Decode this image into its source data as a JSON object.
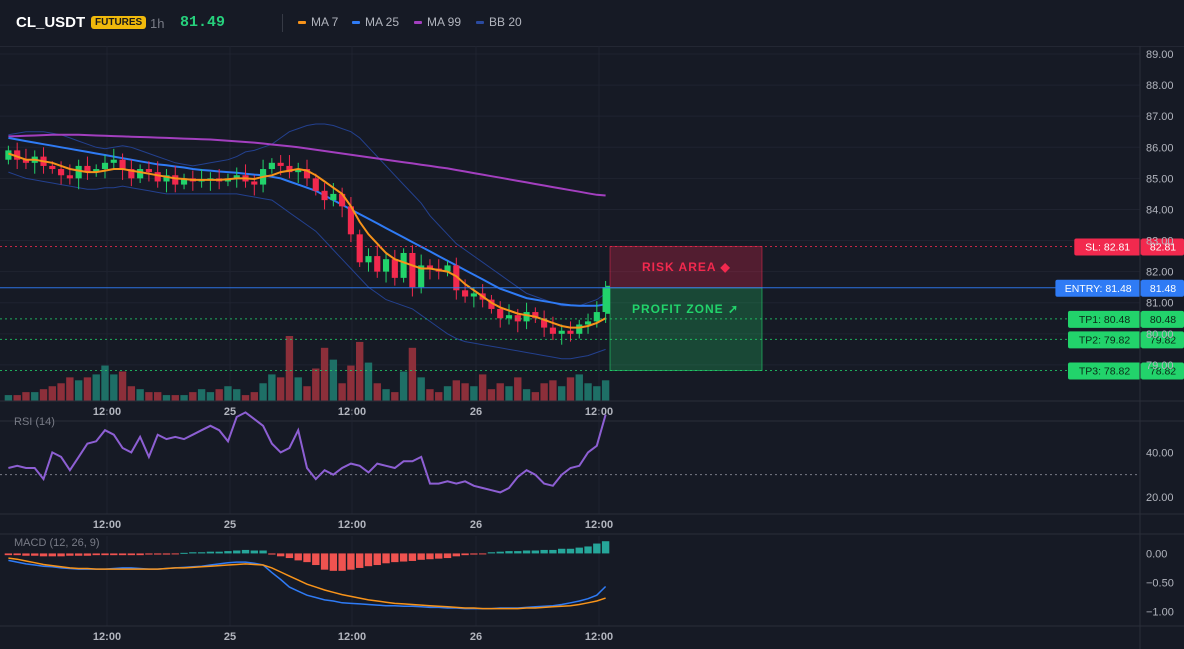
{
  "header": {
    "symbol": "CL_USDT",
    "badge": "FUTURES",
    "timeframe": "1h",
    "last_price": "81.49"
  },
  "legend": [
    {
      "label": "MA 7",
      "color": "#f7931a"
    },
    {
      "label": "MA 25",
      "color": "#2f7bf5"
    },
    {
      "label": "MA 99",
      "color": "#a33fbf"
    },
    {
      "label": "BB 20",
      "color": "#2a4aa0"
    }
  ],
  "colors": {
    "up": "#26a69a",
    "down": "#ef5350",
    "candle_up": "#22d36b",
    "candle_down": "#f2294e",
    "sl": "#f2294e",
    "entry": "#2f7bf5",
    "tp": "#22d36b"
  },
  "annotations": {
    "risk_area": "RISK AREA",
    "profit_zone": "PROFIT ZONE"
  },
  "chart_data": [
    {
      "type": "candlestick",
      "x_ticks": [
        "12:00",
        "25",
        "12:00",
        "26",
        "12:00"
      ],
      "ylim": [
        78,
        89
      ],
      "y_ticks": [
        "89.00",
        "88.00",
        "87.00",
        "86.00",
        "85.00",
        "84.00",
        "83.00",
        "82.00",
        "81.00",
        "80.00",
        "79.00"
      ],
      "close": [
        85.9,
        85.6,
        85.5,
        85.7,
        85.4,
        85.3,
        85.1,
        85.0,
        85.4,
        85.2,
        85.3,
        85.5,
        85.6,
        85.3,
        85.0,
        85.3,
        85.2,
        84.9,
        85.1,
        84.8,
        85.0,
        84.9,
        84.95,
        85.0,
        84.9,
        85.0,
        85.1,
        84.9,
        84.8,
        85.3,
        85.5,
        85.4,
        85.2,
        85.3,
        85.0,
        84.6,
        84.3,
        84.5,
        84.1,
        83.2,
        82.3,
        82.5,
        82.0,
        82.4,
        81.8,
        82.6,
        81.5,
        82.2,
        82.1,
        82.0,
        82.2,
        81.4,
        81.2,
        81.3,
        81.1,
        80.8,
        80.5,
        80.6,
        80.4,
        80.7,
        80.5,
        80.2,
        80.0,
        80.1,
        80.0,
        80.3,
        80.4,
        80.7,
        81.5
      ],
      "open": [
        85.6,
        85.9,
        85.6,
        85.5,
        85.7,
        85.4,
        85.3,
        85.1,
        85.0,
        85.4,
        85.2,
        85.3,
        85.5,
        85.6,
        85.3,
        85.0,
        85.3,
        85.2,
        84.9,
        85.1,
        84.8,
        85.0,
        84.9,
        84.95,
        85.0,
        84.9,
        85.0,
        85.1,
        84.9,
        84.8,
        85.3,
        85.5,
        85.4,
        85.2,
        85.3,
        85.0,
        84.6,
        84.3,
        84.5,
        84.1,
        83.2,
        82.3,
        82.5,
        82.0,
        82.4,
        81.8,
        82.6,
        81.5,
        82.2,
        82.1,
        82.0,
        82.2,
        81.4,
        81.2,
        81.3,
        81.1,
        80.8,
        80.5,
        80.6,
        80.4,
        80.7,
        80.5,
        80.2,
        80.0,
        80.1,
        80.0,
        80.3,
        80.4,
        80.7
      ],
      "volume": [
        2,
        2,
        3,
        3,
        4,
        5,
        6,
        8,
        7,
        8,
        9,
        12,
        9,
        10,
        5,
        4,
        3,
        3,
        2,
        2,
        2,
        3,
        4,
        3,
        4,
        5,
        4,
        2,
        3,
        6,
        9,
        8,
        22,
        8,
        5,
        11,
        18,
        14,
        6,
        12,
        20,
        13,
        6,
        4,
        3,
        10,
        18,
        8,
        4,
        3,
        5,
        7,
        6,
        5,
        9,
        4,
        6,
        5,
        8,
        4,
        3,
        6,
        7,
        5,
        8,
        9,
        6,
        5,
        7
      ],
      "ma7": [
        85.8,
        85.7,
        85.6,
        85.6,
        85.55,
        85.5,
        85.4,
        85.3,
        85.25,
        85.2,
        85.2,
        85.25,
        85.3,
        85.3,
        85.25,
        85.2,
        85.15,
        85.1,
        85.05,
        85.0,
        84.98,
        84.95,
        84.95,
        84.95,
        84.95,
        84.97,
        85.0,
        85.0,
        84.98,
        85.05,
        85.1,
        85.2,
        85.25,
        85.3,
        85.25,
        85.1,
        84.9,
        84.7,
        84.5,
        84.1,
        83.6,
        83.2,
        82.9,
        82.6,
        82.4,
        82.3,
        82.2,
        82.1,
        82.1,
        82.05,
        82.0,
        81.85,
        81.6,
        81.4,
        81.2,
        81.0,
        80.85,
        80.75,
        80.65,
        80.6,
        80.55,
        80.45,
        80.35,
        80.25,
        80.2,
        80.2,
        80.25,
        80.35,
        80.5
      ],
      "ma25": [
        86.3,
        86.25,
        86.2,
        86.15,
        86.1,
        86.05,
        86.0,
        85.95,
        85.9,
        85.85,
        85.8,
        85.75,
        85.7,
        85.65,
        85.6,
        85.55,
        85.5,
        85.45,
        85.42,
        85.38,
        85.35,
        85.3,
        85.27,
        85.25,
        85.22,
        85.2,
        85.18,
        85.15,
        85.12,
        85.1,
        85.05,
        85.0,
        84.9,
        84.8,
        84.7,
        84.6,
        84.45,
        84.3,
        84.15,
        84.0,
        83.85,
        83.7,
        83.55,
        83.4,
        83.25,
        83.1,
        82.95,
        82.8,
        82.65,
        82.5,
        82.35,
        82.2,
        82.05,
        81.9,
        81.75,
        81.6,
        81.45,
        81.35,
        81.25,
        81.15,
        81.1,
        81.05,
        81.0,
        80.95,
        80.92,
        80.9,
        80.9,
        80.9,
        80.95
      ],
      "ma99": [
        86.35,
        86.36,
        86.37,
        86.38,
        86.39,
        86.4,
        86.4,
        86.4,
        86.4,
        86.39,
        86.38,
        86.37,
        86.36,
        86.35,
        86.34,
        86.33,
        86.32,
        86.31,
        86.3,
        86.29,
        86.28,
        86.27,
        86.26,
        86.25,
        86.23,
        86.21,
        86.19,
        86.17,
        86.15,
        86.12,
        86.09,
        86.06,
        86.03,
        86.0,
        85.96,
        85.92,
        85.88,
        85.84,
        85.8,
        85.76,
        85.72,
        85.68,
        85.64,
        85.6,
        85.56,
        85.52,
        85.48,
        85.44,
        85.4,
        85.36,
        85.32,
        85.27,
        85.22,
        85.17,
        85.12,
        85.07,
        85.02,
        84.97,
        84.92,
        84.87,
        84.82,
        84.77,
        84.72,
        84.67,
        84.62,
        84.57,
        84.52,
        84.47,
        84.45
      ],
      "bb_upper": [
        86.4,
        86.45,
        86.5,
        86.5,
        86.5,
        86.45,
        86.4,
        86.3,
        86.2,
        86.1,
        86.0,
        85.95,
        86.0,
        86.05,
        86.0,
        85.9,
        85.8,
        85.7,
        85.6,
        85.5,
        85.45,
        85.4,
        85.45,
        85.5,
        85.55,
        85.6,
        85.7,
        85.85,
        85.9,
        86.0,
        86.1,
        86.3,
        86.5,
        86.6,
        86.7,
        86.75,
        86.75,
        86.7,
        86.6,
        86.5,
        86.3,
        86.0,
        85.7,
        85.4,
        85.1,
        84.8,
        84.5,
        84.2,
        83.8,
        83.5,
        83.2,
        82.9,
        82.7,
        82.5,
        82.3,
        82.1,
        81.9,
        81.7,
        81.5,
        81.3,
        81.2,
        81.1,
        81.0,
        80.9,
        80.9,
        80.9,
        81.0,
        81.1,
        81.3
      ],
      "bb_lower": [
        85.2,
        85.1,
        85.0,
        84.95,
        84.9,
        84.85,
        84.8,
        84.75,
        84.7,
        84.65,
        84.65,
        84.7,
        84.7,
        84.75,
        84.7,
        84.65,
        84.6,
        84.55,
        84.5,
        84.5,
        84.5,
        84.5,
        84.5,
        84.5,
        84.5,
        84.5,
        84.5,
        84.45,
        84.4,
        84.35,
        84.3,
        84.1,
        83.9,
        83.7,
        83.5,
        83.3,
        83.0,
        82.7,
        82.4,
        82.1,
        81.8,
        81.5,
        81.3,
        81.1,
        81.0,
        80.9,
        80.8,
        80.6,
        80.4,
        80.2,
        80.0,
        79.85,
        79.75,
        79.7,
        79.65,
        79.6,
        79.55,
        79.5,
        79.45,
        79.4,
        79.35,
        79.3,
        79.25,
        79.2,
        79.2,
        79.25,
        79.3,
        79.4,
        79.5
      ],
      "levels": [
        {
          "label": "SL: 82.81",
          "value": 82.81,
          "price_label": "82.81"
        },
        {
          "label": "ENTRY: 81.48",
          "value": 81.48,
          "price_label": "81.48"
        },
        {
          "label": "TP1: 80.48",
          "value": 80.48,
          "price_label": "80.48"
        },
        {
          "label": "TP2: 79.82",
          "value": 79.82,
          "price_label": "79.82"
        },
        {
          "label": "TP3: 78.82",
          "value": 78.82,
          "price_label": "78.82"
        }
      ]
    },
    {
      "type": "line",
      "title": "RSI (14)",
      "ylim": [
        15,
        60
      ],
      "y_ticks": [
        "40.00",
        "20.00"
      ],
      "reference": 30,
      "values": [
        33,
        34,
        33,
        33,
        28,
        40,
        38,
        32,
        38,
        44,
        45,
        50,
        48,
        42,
        40,
        47,
        38,
        48,
        46,
        47,
        46,
        48,
        50,
        52,
        50,
        45,
        56,
        58,
        55,
        52,
        44,
        40,
        42,
        50,
        33,
        28,
        32,
        30,
        33,
        35,
        34,
        31,
        35,
        34,
        33,
        36,
        36,
        38,
        26,
        26,
        27,
        26,
        27,
        25,
        24,
        23,
        22,
        24,
        29,
        32,
        30,
        26,
        25,
        30,
        33,
        34,
        40,
        43,
        57
      ]
    },
    {
      "type": "bar",
      "title": "MACD (12, 26, 9)",
      "ylim": [
        -1.25,
        0.3
      ],
      "y_ticks": [
        "0.00",
        "−0.50",
        "−1.00"
      ],
      "histogram": [
        -0.03,
        -0.03,
        -0.04,
        -0.04,
        -0.05,
        -0.05,
        -0.05,
        -0.04,
        -0.04,
        -0.04,
        -0.03,
        -0.03,
        -0.03,
        -0.03,
        -0.03,
        -0.03,
        -0.02,
        -0.02,
        -0.02,
        -0.01,
        0.01,
        0.02,
        0.02,
        0.03,
        0.03,
        0.04,
        0.05,
        0.06,
        0.05,
        0.05,
        -0.02,
        -0.05,
        -0.08,
        -0.12,
        -0.15,
        -0.2,
        -0.28,
        -0.3,
        -0.3,
        -0.28,
        -0.25,
        -0.22,
        -0.2,
        -0.17,
        -0.15,
        -0.14,
        -0.13,
        -0.11,
        -0.1,
        -0.09,
        -0.08,
        -0.05,
        -0.03,
        -0.02,
        -0.01,
        0.02,
        0.03,
        0.04,
        0.04,
        0.05,
        0.05,
        0.06,
        0.06,
        0.08,
        0.08,
        0.1,
        0.12,
        0.17,
        0.21
      ],
      "macd": [
        -0.12,
        -0.15,
        -0.18,
        -0.2,
        -0.22,
        -0.23,
        -0.25,
        -0.26,
        -0.27,
        -0.27,
        -0.27,
        -0.27,
        -0.26,
        -0.25,
        -0.25,
        -0.26,
        -0.27,
        -0.27,
        -0.26,
        -0.25,
        -0.24,
        -0.23,
        -0.22,
        -0.2,
        -0.18,
        -0.16,
        -0.15,
        -0.15,
        -0.17,
        -0.2,
        -0.33,
        -0.45,
        -0.58,
        -0.65,
        -0.72,
        -0.76,
        -0.8,
        -0.82,
        -0.85,
        -0.86,
        -0.87,
        -0.88,
        -0.89,
        -0.9,
        -0.9,
        -0.91,
        -0.91,
        -0.92,
        -0.93,
        -0.93,
        -0.94,
        -0.94,
        -0.95,
        -0.95,
        -0.95,
        -0.95,
        -0.94,
        -0.94,
        -0.94,
        -0.93,
        -0.92,
        -0.91,
        -0.9,
        -0.88,
        -0.85,
        -0.82,
        -0.78,
        -0.72,
        -0.57
      ],
      "signal": [
        -0.08,
        -0.1,
        -0.13,
        -0.16,
        -0.19,
        -0.21,
        -0.23,
        -0.25,
        -0.26,
        -0.26,
        -0.27,
        -0.27,
        -0.27,
        -0.27,
        -0.27,
        -0.27,
        -0.27,
        -0.27,
        -0.26,
        -0.25,
        -0.25,
        -0.24,
        -0.23,
        -0.22,
        -0.21,
        -0.2,
        -0.19,
        -0.18,
        -0.19,
        -0.2,
        -0.25,
        -0.32,
        -0.39,
        -0.46,
        -0.53,
        -0.58,
        -0.63,
        -0.67,
        -0.71,
        -0.74,
        -0.77,
        -0.8,
        -0.82,
        -0.84,
        -0.86,
        -0.87,
        -0.88,
        -0.89,
        -0.9,
        -0.91,
        -0.92,
        -0.93,
        -0.94,
        -0.94,
        -0.95,
        -0.95,
        -0.95,
        -0.95,
        -0.95,
        -0.94,
        -0.94,
        -0.93,
        -0.92,
        -0.91,
        -0.9,
        -0.88,
        -0.85,
        -0.82,
        -0.77
      ]
    }
  ]
}
